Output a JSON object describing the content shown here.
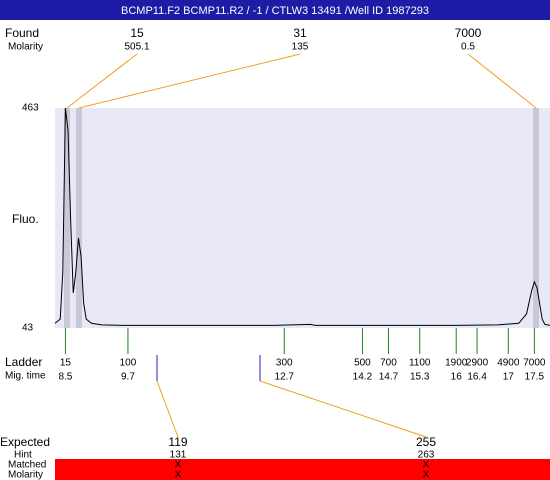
{
  "header": {
    "title": "BCMP11.F2  BCMP11.R2 / -1 / CTLW3 13491 /Well ID 1987293"
  },
  "found": {
    "label": "Found",
    "molarity_label": "Molarity",
    "peaks": [
      {
        "size": "15",
        "molarity": "505.1"
      },
      {
        "size": "31",
        "molarity": "135"
      },
      {
        "size": "7000",
        "molarity": "0.5"
      }
    ]
  },
  "chart_data": {
    "type": "line",
    "y_label": "Fluo.",
    "x": [
      8.3,
      8.4,
      8.45,
      8.5,
      8.55,
      8.6,
      8.65,
      8.7,
      8.75,
      8.8,
      8.85,
      8.9,
      9.0,
      9.2,
      9.6,
      10.5,
      11.5,
      12.5,
      13.2,
      13.3,
      14.0,
      15.0,
      16.0,
      16.8,
      17.2,
      17.35,
      17.45,
      17.5,
      17.55,
      17.6,
      17.65,
      17.7,
      17.8
    ],
    "values": [
      52,
      60,
      150,
      463,
      420,
      250,
      110,
      150,
      215,
      180,
      90,
      60,
      52,
      49,
      48,
      48,
      48,
      48,
      50,
      48,
      48,
      48,
      48,
      49,
      52,
      70,
      115,
      131,
      120,
      90,
      60,
      50,
      48
    ],
    "color": "#000000",
    "xlim": [
      8.3,
      17.8
    ],
    "ylim": [
      43,
      463
    ],
    "yticks": [
      43,
      463
    ]
  },
  "ladder": {
    "label": "Ladder",
    "time_label": "Mig. time",
    "sizes": [
      "15",
      "100",
      "300",
      "500",
      "700",
      "1100",
      "1900",
      "2900",
      "4900",
      "7000"
    ],
    "times": [
      8.5,
      9.7,
      12.7,
      14.2,
      14.7,
      15.3,
      16,
      16.4,
      17,
      17.5
    ]
  },
  "expected": {
    "label": "Expected",
    "hint_label": "Hint",
    "matched_label": "Matched",
    "molarity_label": "Molarity",
    "items": [
      {
        "size": "119",
        "hint": "131",
        "matched": "X",
        "molarity": "X"
      },
      {
        "size": "255",
        "hint": "263",
        "matched": "X",
        "molarity": "X"
      }
    ]
  }
}
